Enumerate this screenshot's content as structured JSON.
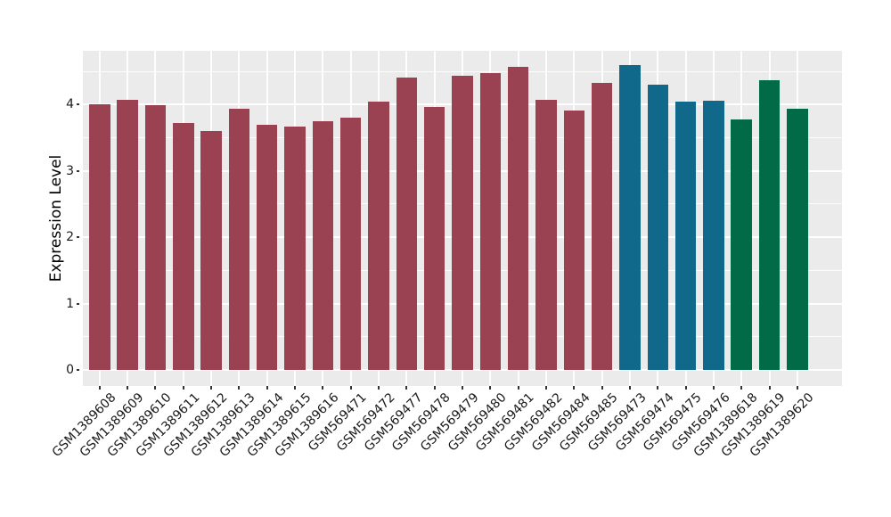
{
  "figure": {
    "background": "#FFFFFF",
    "panel_background": "#EBEBEB",
    "grid_color": "#FFFFFF",
    "tick_color": "#333333",
    "axis_text_color": "#1A1A1A",
    "axis_title_color": "#000000"
  },
  "palette": {
    "maroon": "#9A4251",
    "teal": "#10698B",
    "green": "#006B46"
  },
  "chart_data": {
    "type": "bar",
    "title": "",
    "xlabel": "",
    "ylabel": "Expression Level",
    "ylim": [
      -0.24,
      4.81
    ],
    "yticks": [
      0,
      1,
      2,
      3,
      4
    ],
    "minor_yticks": [
      0.5,
      1.5,
      2.5,
      3.5,
      4.5
    ],
    "grid": true,
    "legend_position": "none",
    "bar_width_fraction": 0.75,
    "categories": [
      "GSM1389608",
      "GSM1389609",
      "GSM1389610",
      "GSM1389611",
      "GSM1389612",
      "GSM1389613",
      "GSM1389614",
      "GSM1389615",
      "GSM1389616",
      "GSM569471",
      "GSM569472",
      "GSM569477",
      "GSM569478",
      "GSM569479",
      "GSM569480",
      "GSM569481",
      "GSM569482",
      "GSM569484",
      "GSM569485",
      "GSM569473",
      "GSM569474",
      "GSM569475",
      "GSM569476",
      "GSM1389618",
      "GSM1389619",
      "GSM1389620"
    ],
    "values": [
      4.0,
      4.07,
      3.99,
      3.72,
      3.6,
      3.94,
      3.7,
      3.67,
      3.75,
      3.8,
      4.05,
      4.41,
      3.96,
      4.44,
      4.48,
      4.57,
      4.07,
      3.91,
      4.33,
      4.59,
      4.3,
      4.04,
      4.06,
      3.78,
      4.37,
      3.94
    ],
    "bar_colors": [
      "#9A4251",
      "#9A4251",
      "#9A4251",
      "#9A4251",
      "#9A4251",
      "#9A4251",
      "#9A4251",
      "#9A4251",
      "#9A4251",
      "#9A4251",
      "#9A4251",
      "#9A4251",
      "#9A4251",
      "#9A4251",
      "#9A4251",
      "#9A4251",
      "#9A4251",
      "#9A4251",
      "#9A4251",
      "#10698B",
      "#10698B",
      "#10698B",
      "#10698B",
      "#006B46",
      "#006B46",
      "#006B46"
    ]
  }
}
